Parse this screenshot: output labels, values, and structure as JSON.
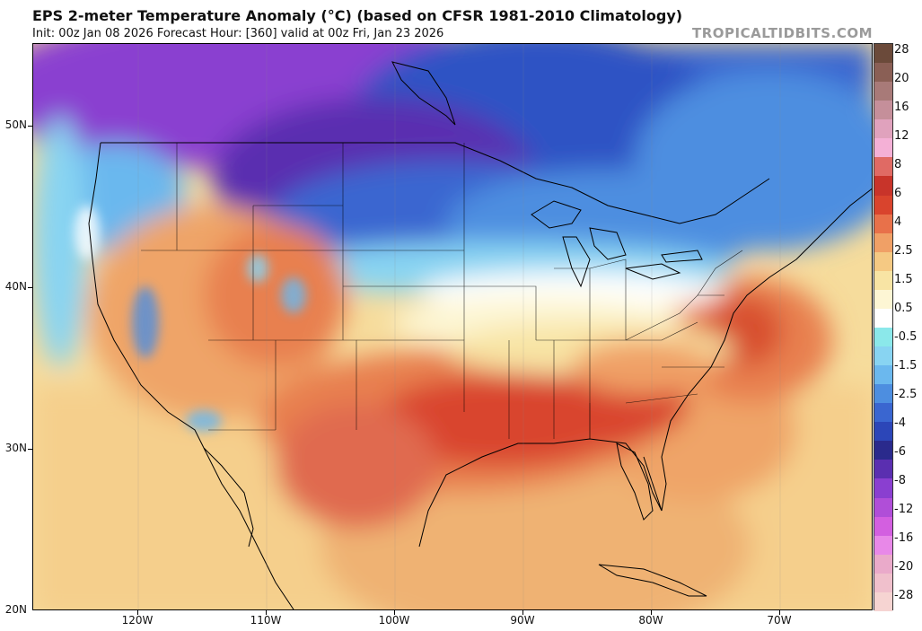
{
  "header": {
    "title": "EPS 2-meter Temperature Anomaly (°C) (based on CFSR 1981-2010 Climatology)",
    "subtitle": "Init: 00z Jan 08 2026   Forecast Hour: [360]   valid at 00z Fri, Jan 23 2026",
    "brand": "TROPICALTIDBITS.COM"
  },
  "axes": {
    "lat_labels": [
      "50N",
      "40N",
      "30N",
      "20N"
    ],
    "lon_labels": [
      "120W",
      "110W",
      "100W",
      "90W",
      "80W",
      "70W"
    ]
  },
  "colorbar": {
    "labels": [
      "28",
      "20",
      "16",
      "12",
      "8",
      "6",
      "4",
      "2.5",
      "1.5",
      "0.5",
      "-0.5",
      "-1.5",
      "-2.5",
      "-4",
      "-6",
      "-8",
      "-12",
      "-16",
      "-20",
      "-28"
    ],
    "colors": [
      "#6b4a3a",
      "#8a5f55",
      "#a87a78",
      "#c58f9a",
      "#e0a2bd",
      "#f4b0d6",
      "#e06a64",
      "#c8342a",
      "#d9442d",
      "#e8714a",
      "#f0a066",
      "#f5c983",
      "#f8e4a4",
      "#fdf6d4",
      "#ffffff",
      "#8be8ea",
      "#88d4f2",
      "#6bb8ee",
      "#4d8ee0",
      "#3a66d0",
      "#2c46b8",
      "#2a2a8c",
      "#5a2fb0",
      "#8a3fd0",
      "#b04ed8",
      "#d35fe0",
      "#e888e8",
      "#eaaaca",
      "#f0c0cc",
      "#f6d4d2"
    ]
  }
}
